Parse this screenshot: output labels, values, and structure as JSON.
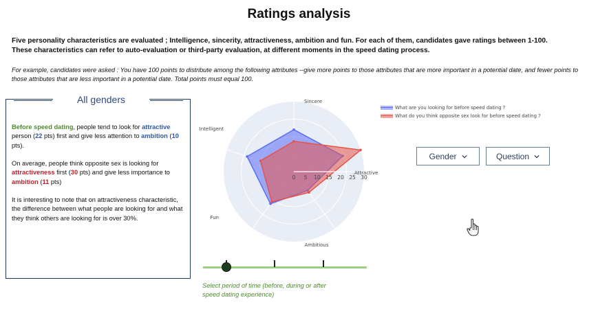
{
  "title": "Ratings analysis",
  "intro_line1": "Five personality characteristics are evaluated ; Intelligence, sincerity, attractiveness, ambition and fun. For each of them, candidates gave ratings between 1-100.",
  "intro_line2": "These characteristics can refer to auto-evaluation or third-party evaluation, at different moments in the speed dating process.",
  "example_text": "For example, candidates were asked : You have 100 points to distribute among the following attributes --give more points to those attributes that are more important in a potential date, and fewer points to those attributes that are less important in a potential date. Total points must equal 100.",
  "panel": {
    "title": "All genders",
    "p1": {
      "a": "Before speed dating",
      "b": ", people tend to look for ",
      "c": "attractive",
      "d": " person (",
      "e": "22",
      "f": " pts) first and give less attention to ",
      "g": "ambition",
      "h": " (",
      "i": "10",
      "j": " pts)."
    },
    "p2": {
      "a": "On average, people think opposite sex is looking for ",
      "b": "attractiveness",
      "c": " first (",
      "d": "30",
      "e": " pts) and give less importance to ",
      "f": "ambition",
      "g": " (",
      "h": "11",
      "i": " pts)"
    },
    "p3": "It is interesting to note that on attractiveness characteristic, the difference between what people are looking for and what they think others are looking for is over 30%."
  },
  "chart_data": {
    "type": "radar",
    "axes": [
      "Sincere",
      "Attractive",
      "Ambitious",
      "Fun",
      "Intelligent"
    ],
    "radial_range": [
      0,
      30
    ],
    "radial_ticks": [
      "0",
      "5",
      "10",
      "15",
      "20",
      "25",
      "30"
    ],
    "series": [
      {
        "name": "What are you looking for before speed dating ?",
        "color": "#5b6ef5",
        "values": [
          18,
          22,
          10,
          17,
          21
        ]
      },
      {
        "name": "What do you think opposite sex look for before speed dating ?",
        "color": "#e5534b",
        "values": [
          13,
          30,
          11,
          16,
          15
        ]
      }
    ]
  },
  "controls": {
    "gender_label": "Gender",
    "question_label": "Question"
  },
  "slider": {
    "position_index": 0,
    "stops": 3,
    "caption_line1": "Select period of time (before, during or after",
    "caption_line2": "speed dating experience)"
  }
}
